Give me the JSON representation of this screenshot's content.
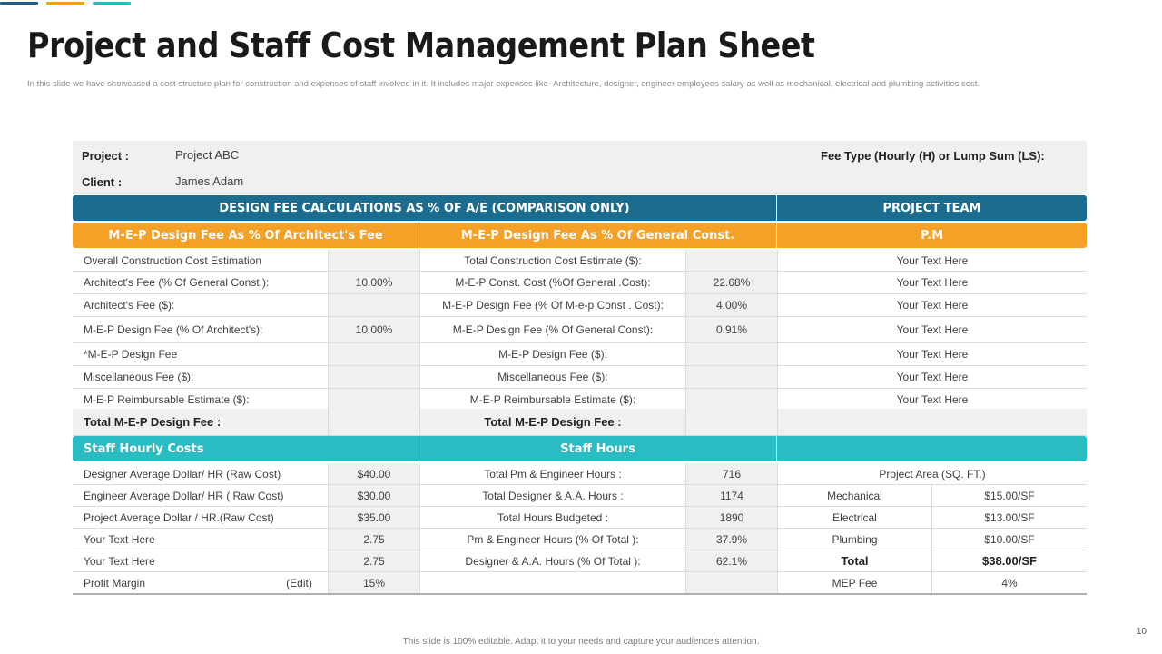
{
  "colors": {
    "accent1": "#1f5f8b",
    "accent2": "#f39c24",
    "accent3": "#2bbbc3",
    "header_blue": "#1b6c8e",
    "header_orange": "#f5a026",
    "header_teal": "#29bcc3",
    "grey_fill": "#f0f0f0"
  },
  "title": "Project and Staff Cost Management Plan Sheet",
  "subtitle": "In this slide we have showcased a cost structure plan for construction and expenses of staff involved in it. It includes major expenses like- Architecture, designer, engineer employees salary as well as mechanical, electrical and plumbing  activities cost.",
  "project": {
    "project_label": "Project :",
    "project_value": "Project ABC",
    "client_label": "Client :",
    "client_value": "James Adam",
    "fee_type_label": "Fee Type (Hourly (H) or Lump Sum (LS):"
  },
  "headers": {
    "design_fee": "DESIGN FEE CALCULATIONS AS % OF A/E (COMPARISON ONLY)",
    "project_team": "PROJECT TEAM",
    "mep_architect": "M-E-P Design Fee As % Of Architect's Fee",
    "mep_general": "M-E-P Design Fee As % Of General Const.",
    "pm": "P.M",
    "staff_hourly": "Staff Hourly Costs",
    "staff_hours": "Staff Hours"
  },
  "design_rows": [
    {
      "a": "Overall Construction Cost Estimation",
      "b": "",
      "c": "Total Construction Cost Estimate ($):",
      "d": "",
      "e": "Your Text Here"
    },
    {
      "a": "Architect's Fee (% Of General Const.):",
      "b": "10.00%",
      "c": "M-E-P Const. Cost (%Of General .Cost):",
      "d": "22.68%",
      "e": "Your Text Here"
    },
    {
      "a": "Architect's Fee ($):",
      "b": "",
      "c": "M-E-P Design Fee (% Of  M-e-p Const . Cost):",
      "d": "4.00%",
      "e": "Your Text Here"
    },
    {
      "a": "M-E-P Design Fee (% Of Architect's):",
      "b": "10.00%",
      "c": "M-E-P Design Fee (% Of General Const):",
      "d": "0.91%",
      "e": "Your Text Here"
    },
    {
      "a": "*M-E-P Design Fee",
      "b": "",
      "c": "M-E-P Design Fee ($):",
      "d": "",
      "e": "Your Text Here"
    },
    {
      "a": "Miscellaneous Fee ($):",
      "b": "",
      "c": "Miscellaneous Fee ($):",
      "d": "",
      "e": "Your Text Here"
    },
    {
      "a": "M-E-P Reimbursable Estimate ($):",
      "b": "",
      "c": "M-E-P Reimbursable Estimate ($):",
      "d": "",
      "e": "Your Text Here"
    }
  ],
  "total_row": {
    "a": "Total M-E-P Design Fee :",
    "c": "Total M-E-P Design Fee :"
  },
  "staff_rows": [
    {
      "a": "Designer Average Dollar/ HR (Raw Cost)",
      "b": "$40.00",
      "c": "Total Pm & Engineer Hours :",
      "d": "716",
      "e": "Project Area (SQ. FT.)",
      "f": ""
    },
    {
      "a": "Engineer Average Dollar/ HR ( Raw Cost)",
      "b": "$30.00",
      "c": "Total Designer & A.A.  Hours :",
      "d": "1174",
      "e": "Mechanical",
      "f": "$15.00/SF"
    },
    {
      "a": "Project Average Dollar / HR.(Raw Cost)",
      "b": "$35.00",
      "c": "Total Hours Budgeted :",
      "d": "1890",
      "e": "Electrical",
      "f": "$13.00/SF"
    },
    {
      "a": "Your Text Here",
      "b": "2.75",
      "c": "Pm & Engineer Hours (% Of Total ):",
      "d": "37.9%",
      "e": "Plumbing",
      "f": "$10.00/SF"
    },
    {
      "a": "Your Text Here",
      "b": "2.75",
      "c": "Designer & A.A.  Hours (% Of Total ):",
      "d": "62.1%",
      "e": "Total",
      "f": "$38.00/SF"
    },
    {
      "a": "Profit Margin",
      "a2": "(Edit)",
      "b": "15%",
      "c": "",
      "d": "",
      "e": "MEP Fee",
      "f": "4%"
    }
  ],
  "footer": "This slide is 100% editable. Adapt it to your needs and capture your audience's attention.",
  "page_number": "10"
}
